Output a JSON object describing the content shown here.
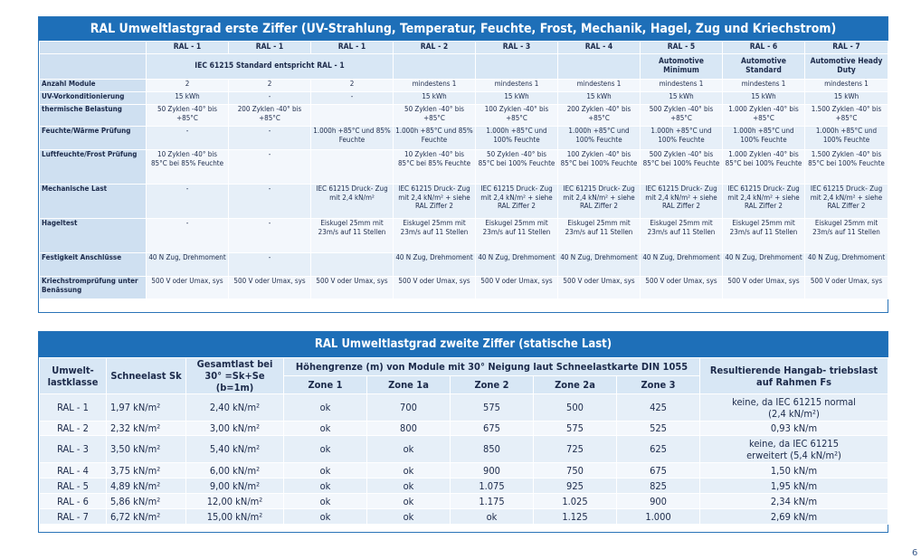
{
  "table1": {
    "title": "RAL Umweltlastgrad erste Ziffer (UV-Strahlung, Temperatur, Feuchte, Frost, Mechanik, Hagel, Zug und Kriechstrom)",
    "columns": [
      "RAL - 1",
      "RAL - 1",
      "RAL - 1",
      "RAL - 2",
      "RAL - 3",
      "RAL - 4",
      "RAL - 5",
      "RAL - 6",
      "RAL - 7"
    ],
    "subheader": {
      "iec_note": "IEC 61215 Standard entspricht RAL - 1",
      "ral5": "Automotive Minimum",
      "ral6": "Automotive Standard",
      "ral7": "Automotive Heady Duty"
    },
    "rows": [
      {
        "label": "Anzahl Module",
        "cells": [
          "2",
          "2",
          "2",
          "mindestens 1",
          "mindestens 1",
          "mindestens 1",
          "mindestens 1",
          "mindestens 1",
          "mindestens 1"
        ]
      },
      {
        "label": "UV-Vorkonditionierung",
        "cells": [
          "15 kWh",
          "-",
          "-",
          "15 kWh",
          "15 kWh",
          "15 kWh",
          "15 kWh",
          "15 kWh",
          "15 kWh"
        ]
      },
      {
        "label": "thermische Belastung",
        "cells": [
          "50 Zyklen -40° bis +85°C",
          "200 Zyklen -40° bis +85°C",
          "",
          "50 Zyklen -40° bis +85°C",
          "100 Zyklen -40° bis +85°C",
          "200 Zyklen -40° bis +85°C",
          "500 Zyklen -40° bis +85°C",
          "1.000 Zyklen -40° bis +85°C",
          "1.500 Zyklen -40° bis +85°C"
        ]
      },
      {
        "label": "Feuchte/Wärme Prüfung",
        "cells": [
          "-",
          "-",
          "1.000h +85°C und 85% Feuchte",
          "1.000h +85°C und 85% Feuchte",
          "1.000h +85°C und 100% Feuchte",
          "1.000h +85°C und 100% Feuchte",
          "1.000h +85°C und 100% Feuchte",
          "1.000h +85°C und 100% Feuchte",
          "1.000h +85°C und 100% Feuchte"
        ]
      },
      {
        "label": "Luftfeuchte/Frost Prüfung",
        "cells": [
          "10 Zyklen -40° bis 85°C bei 85% Feuchte",
          "-",
          "",
          "10 Zyklen -40° bis 85°C bei 85% Feuchte",
          "50 Zyklen -40° bis 85°C bei 100% Feuchte",
          "100 Zyklen -40° bis 85°C bei 100% Feuchte",
          "500 Zyklen -40° bis 85°C bei 100% Feuchte",
          "1.000 Zyklen -40° bis 85°C bei 100% Feuchte",
          "1.500 Zyklen -40° bis 85°C bei 100% Feuchte"
        ]
      },
      {
        "label": "Mechanische Last",
        "cells": [
          "-",
          "-",
          "IEC 61215 Druck- Zug mit 2,4 kN/m²",
          "IEC 61215 Druck- Zug mit 2,4 kN/m² + siehe RAL Ziffer 2",
          "IEC 61215 Druck- Zug mit 2,4 kN/m² + siehe RAL Ziffer 2",
          "IEC 61215 Druck- Zug mit 2,4 kN/m² + siehe RAL Ziffer 2",
          "IEC 61215 Druck- Zug mit 2,4 kN/m² + siehe RAL Ziffer 2",
          "IEC 61215 Druck- Zug mit 2,4 kN/m² + siehe RAL Ziffer 2",
          "IEC 61215 Druck- Zug mit 2,4 kN/m² + siehe RAL Ziffer 2"
        ]
      },
      {
        "label": "Hageltest",
        "cells": [
          "-",
          "-",
          "Eiskugel 25mm mit 23m/s auf 11 Stellen",
          "Eiskugel 25mm mit 23m/s auf 11 Stellen",
          "Eiskugel 25mm mit 23m/s auf 11 Stellen",
          "Eiskugel 25mm mit 23m/s auf 11 Stellen",
          "Eiskugel 25mm mit 23m/s auf 11 Stellen",
          "Eiskugel 25mm mit 23m/s auf 11 Stellen",
          "Eiskugel 25mm mit 23m/s auf 11 Stellen"
        ]
      },
      {
        "label": "Festigkeit Anschlüsse",
        "cells": [
          "40 N Zug, Drehmoment",
          "-",
          "",
          "40 N Zug, Drehmoment",
          "40 N Zug, Drehmoment",
          "40 N Zug, Drehmoment",
          "40 N Zug, Drehmoment",
          "40 N Zug, Drehmoment",
          "40 N Zug, Drehmoment"
        ]
      },
      {
        "label": "Kriechstromprüfung unter Benässung",
        "cells": [
          "500 V oder Umax, sys",
          "500 V oder Umax, sys",
          "500 V oder Umax, sys",
          "500 V oder Umax, sys",
          "500 V oder Umax, sys",
          "500 V oder Umax, sys",
          "500 V oder Umax, sys",
          "500 V oder Umax, sys",
          "500 V oder Umax, sys"
        ]
      }
    ]
  },
  "table2": {
    "title": "RAL Umweltlastgrad zweite Ziffer (statische Last)",
    "headers": {
      "klasse": "Umwelt- lastklasse",
      "schnee": "Schneelast Sk",
      "gesamt": "Gesamtlast bei 30° =Sk+Se (b=1m)",
      "hoehe": "Höhengrenze (m) von Module mit 30° Neigung laut Schneelastkarte DIN 1055",
      "hang": "Resultierende Hangab- triebslast auf Rahmen Fs"
    },
    "zones": [
      "Zone 1",
      "Zone 1a",
      "Zone 2",
      "Zone 2a",
      "Zone 3"
    ],
    "rows": [
      {
        "klasse": "RAL - 1",
        "sk": "1,97 kN/m²",
        "ges": "2,40 kN/m²",
        "z": [
          "ok",
          "700",
          "575",
          "500",
          "425"
        ],
        "fs": "keine, da IEC 61215 normal (2,4 kN/m²)"
      },
      {
        "klasse": "RAL - 2",
        "sk": "2,32 kN/m²",
        "ges": "3,00 kN/m²",
        "z": [
          "ok",
          "800",
          "675",
          "575",
          "525"
        ],
        "fs": "0,93 kN/m"
      },
      {
        "klasse": "RAL - 3",
        "sk": "3,50 kN/m²",
        "ges": "5,40 kN/m²",
        "z": [
          "ok",
          "ok",
          "850",
          "725",
          "625"
        ],
        "fs": "keine, da IEC 61215 erweitert (5,4 kN/m²)"
      },
      {
        "klasse": "RAL - 4",
        "sk": "3,75 kN/m²",
        "ges": "6,00 kN/m²",
        "z": [
          "ok",
          "ok",
          "900",
          "750",
          "675"
        ],
        "fs": "1,50 kN/m"
      },
      {
        "klasse": "RAL - 5",
        "sk": "4,89 kN/m²",
        "ges": "9,00 kN/m²",
        "z": [
          "ok",
          "ok",
          "1.075",
          "925",
          "825"
        ],
        "fs": "1,95 kN/m"
      },
      {
        "klasse": "RAL - 6",
        "sk": "5,86 kN/m²",
        "ges": "12,00 kN/m²",
        "z": [
          "ok",
          "ok",
          "1.175",
          "1.025",
          "900"
        ],
        "fs": "2,34 kN/m"
      },
      {
        "klasse": "RAL - 7",
        "sk": "6,72 kN/m²",
        "ges": "15,00 kN/m²",
        "z": [
          "ok",
          "ok",
          "ok",
          "1.125",
          "1.000"
        ],
        "fs": "2,69 kN/m"
      }
    ]
  },
  "page_number": "6"
}
